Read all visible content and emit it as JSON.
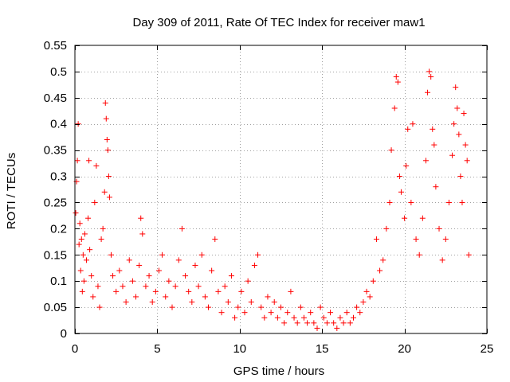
{
  "chart_data": {
    "type": "scatter",
    "title": "Day 309 of 2011, Rate Of TEC Index for receiver maw1",
    "xlabel": "GPS time / hours",
    "ylabel": "ROTI / TECUs",
    "xlim": [
      0,
      25
    ],
    "ylim": [
      0,
      0.55
    ],
    "xticks": [
      0,
      5,
      10,
      15,
      20,
      25
    ],
    "yticks": [
      0,
      0.05,
      0.1,
      0.15,
      0.2,
      0.25,
      0.3,
      0.35,
      0.4,
      0.45,
      0.5,
      0.55
    ],
    "xtick_labels": [
      "0",
      "5",
      "10",
      "15",
      "20",
      "25"
    ],
    "ytick_labels": [
      "0",
      "0.05",
      "0.1",
      "0.15",
      "0.2",
      "0.25",
      "0.3",
      "0.35",
      "0.4",
      "0.45",
      "0.5",
      "0.55"
    ],
    "grid": true,
    "marker": "+",
    "colors": {
      "series": "#ff0000",
      "grid": "#a0a0a0",
      "axis": "#000000"
    },
    "series": [
      {
        "points": [
          [
            0.05,
            0.23
          ],
          [
            0.1,
            0.29
          ],
          [
            0.15,
            0.33
          ],
          [
            0.2,
            0.4
          ],
          [
            0.25,
            0.17
          ],
          [
            0.3,
            0.21
          ],
          [
            0.35,
            0.12
          ],
          [
            0.4,
            0.18
          ],
          [
            0.45,
            0.08
          ],
          [
            0.5,
            0.15
          ],
          [
            0.55,
            0.1
          ],
          [
            0.6,
            0.19
          ],
          [
            0.7,
            0.14
          ],
          [
            0.8,
            0.22
          ],
          [
            0.85,
            0.33
          ],
          [
            0.9,
            0.16
          ],
          [
            1.0,
            0.11
          ],
          [
            1.1,
            0.07
          ],
          [
            1.2,
            0.25
          ],
          [
            1.3,
            0.32
          ],
          [
            1.4,
            0.09
          ],
          [
            1.5,
            0.05
          ],
          [
            1.6,
            0.18
          ],
          [
            1.7,
            0.2
          ],
          [
            1.8,
            0.27
          ],
          [
            1.85,
            0.44
          ],
          [
            1.9,
            0.41
          ],
          [
            1.95,
            0.37
          ],
          [
            2.0,
            0.35
          ],
          [
            2.05,
            0.3
          ],
          [
            2.1,
            0.26
          ],
          [
            2.2,
            0.15
          ],
          [
            2.3,
            0.11
          ],
          [
            2.5,
            0.08
          ],
          [
            2.7,
            0.12
          ],
          [
            2.9,
            0.09
          ],
          [
            3.1,
            0.06
          ],
          [
            3.3,
            0.14
          ],
          [
            3.5,
            0.1
          ],
          [
            3.7,
            0.07
          ],
          [
            3.9,
            0.13
          ],
          [
            4.0,
            0.22
          ],
          [
            4.1,
            0.19
          ],
          [
            4.3,
            0.09
          ],
          [
            4.5,
            0.11
          ],
          [
            4.7,
            0.06
          ],
          [
            4.9,
            0.08
          ],
          [
            5.1,
            0.12
          ],
          [
            5.3,
            0.15
          ],
          [
            5.5,
            0.07
          ],
          [
            5.7,
            0.1
          ],
          [
            5.9,
            0.05
          ],
          [
            6.1,
            0.09
          ],
          [
            6.3,
            0.14
          ],
          [
            6.5,
            0.2
          ],
          [
            6.7,
            0.11
          ],
          [
            6.9,
            0.08
          ],
          [
            7.1,
            0.06
          ],
          [
            7.3,
            0.13
          ],
          [
            7.5,
            0.09
          ],
          [
            7.7,
            0.15
          ],
          [
            7.9,
            0.07
          ],
          [
            8.1,
            0.05
          ],
          [
            8.3,
            0.12
          ],
          [
            8.5,
            0.18
          ],
          [
            8.7,
            0.08
          ],
          [
            8.9,
            0.04
          ],
          [
            9.1,
            0.09
          ],
          [
            9.3,
            0.06
          ],
          [
            9.5,
            0.11
          ],
          [
            9.7,
            0.03
          ],
          [
            9.9,
            0.05
          ],
          [
            10.1,
            0.08
          ],
          [
            10.3,
            0.04
          ],
          [
            10.5,
            0.1
          ],
          [
            10.7,
            0.06
          ],
          [
            10.9,
            0.13
          ],
          [
            11.1,
            0.15
          ],
          [
            11.3,
            0.05
          ],
          [
            11.5,
            0.03
          ],
          [
            11.7,
            0.07
          ],
          [
            11.9,
            0.04
          ],
          [
            12.1,
            0.06
          ],
          [
            12.3,
            0.03
          ],
          [
            12.5,
            0.05
          ],
          [
            12.7,
            0.02
          ],
          [
            12.9,
            0.04
          ],
          [
            13.1,
            0.08
          ],
          [
            13.3,
            0.03
          ],
          [
            13.5,
            0.02
          ],
          [
            13.7,
            0.05
          ],
          [
            13.9,
            0.03
          ],
          [
            14.1,
            0.02
          ],
          [
            14.3,
            0.04
          ],
          [
            14.5,
            0.02
          ],
          [
            14.7,
            0.01
          ],
          [
            14.9,
            0.05
          ],
          [
            15.1,
            0.03
          ],
          [
            15.3,
            0.02
          ],
          [
            15.5,
            0.04
          ],
          [
            15.7,
            0.02
          ],
          [
            15.9,
            0.01
          ],
          [
            16.1,
            0.03
          ],
          [
            16.3,
            0.02
          ],
          [
            16.5,
            0.04
          ],
          [
            16.7,
            0.02
          ],
          [
            16.9,
            0.03
          ],
          [
            17.1,
            0.05
          ],
          [
            17.3,
            0.04
          ],
          [
            17.5,
            0.06
          ],
          [
            17.7,
            0.08
          ],
          [
            17.9,
            0.07
          ],
          [
            18.1,
            0.1
          ],
          [
            18.3,
            0.18
          ],
          [
            18.5,
            0.12
          ],
          [
            18.7,
            0.14
          ],
          [
            18.9,
            0.2
          ],
          [
            19.1,
            0.25
          ],
          [
            19.2,
            0.35
          ],
          [
            19.4,
            0.43
          ],
          [
            19.5,
            0.49
          ],
          [
            19.6,
            0.48
          ],
          [
            19.7,
            0.3
          ],
          [
            19.8,
            0.27
          ],
          [
            20.0,
            0.22
          ],
          [
            20.1,
            0.32
          ],
          [
            20.2,
            0.39
          ],
          [
            20.4,
            0.25
          ],
          [
            20.5,
            0.4
          ],
          [
            20.7,
            0.18
          ],
          [
            20.9,
            0.15
          ],
          [
            21.1,
            0.22
          ],
          [
            21.3,
            0.33
          ],
          [
            21.4,
            0.46
          ],
          [
            21.5,
            0.5
          ],
          [
            21.6,
            0.49
          ],
          [
            21.7,
            0.39
          ],
          [
            21.8,
            0.36
          ],
          [
            21.9,
            0.28
          ],
          [
            22.1,
            0.2
          ],
          [
            22.3,
            0.14
          ],
          [
            22.5,
            0.18
          ],
          [
            22.7,
            0.25
          ],
          [
            22.9,
            0.34
          ],
          [
            23.0,
            0.4
          ],
          [
            23.1,
            0.47
          ],
          [
            23.2,
            0.43
          ],
          [
            23.3,
            0.38
          ],
          [
            23.4,
            0.3
          ],
          [
            23.5,
            0.25
          ],
          [
            23.6,
            0.42
          ],
          [
            23.7,
            0.36
          ],
          [
            23.8,
            0.33
          ],
          [
            23.9,
            0.15
          ]
        ]
      }
    ]
  }
}
